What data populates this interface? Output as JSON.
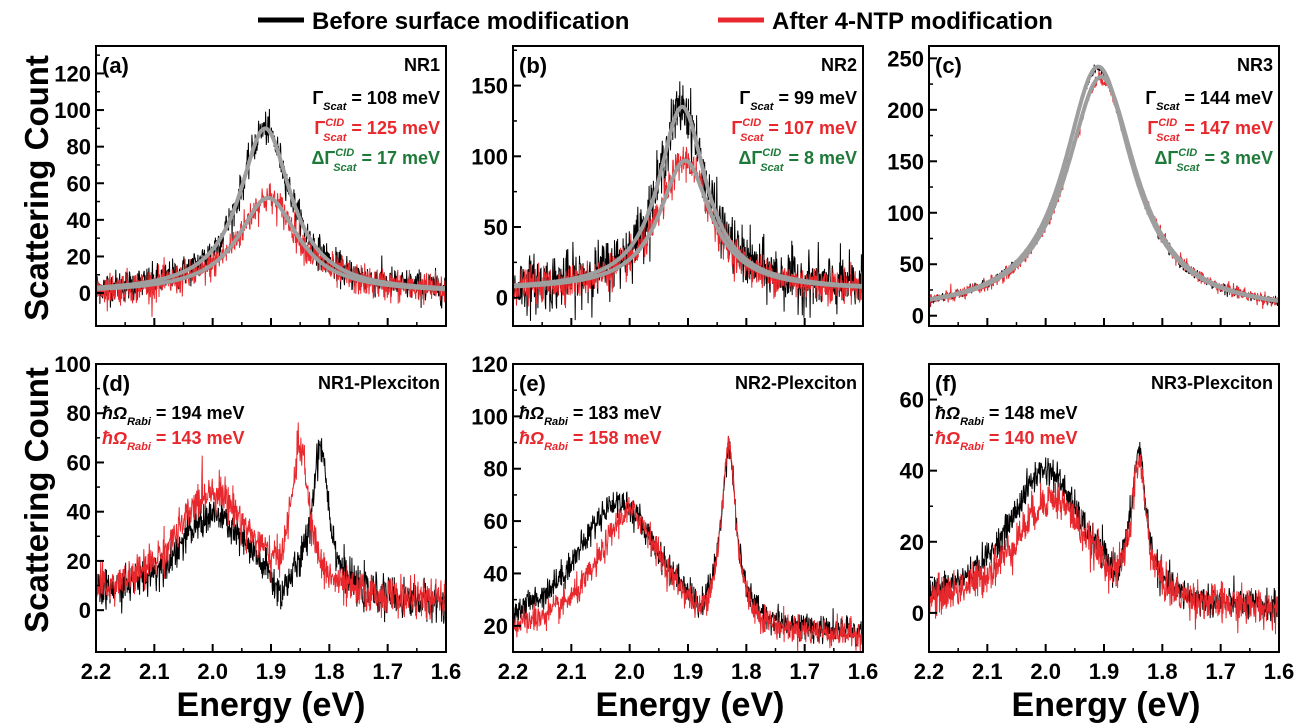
{
  "legend": [
    {
      "label": "Before surface modification",
      "color": "#000000"
    },
    {
      "label": "After 4-NTP modification",
      "color": "#e8282d"
    }
  ],
  "y_axis_title": "Scattering Count",
  "x_axis_title": "Energy (eV)",
  "colors": {
    "before": "#000000",
    "after": "#e8282d",
    "fit": "#9e9e9e",
    "delta": "#1f7a3a"
  },
  "chart_data": [
    {
      "type": "line",
      "panel": "(a)",
      "title": "NR1",
      "xlim": [
        2.2,
        1.6
      ],
      "ylim": [
        -18,
        135
      ],
      "xticks": [
        "2.2",
        "2.1",
        "2.0",
        "1.9",
        "1.8",
        "1.7",
        "1.6"
      ],
      "yticks": [
        0,
        20,
        40,
        60,
        80,
        100,
        120
      ],
      "series": [
        {
          "kind": "before",
          "peaks": [
            {
              "center": 1.91,
              "height": 90,
              "width": 0.108
            }
          ],
          "baseline": 0,
          "noise": 8
        },
        {
          "kind": "after",
          "peaks": [
            {
              "center": 1.905,
              "height": 52,
              "width": 0.125
            }
          ],
          "baseline": 0,
          "noise": 8
        }
      ],
      "fits": [
        {
          "center": 1.91,
          "height": 90,
          "width": 0.108
        },
        {
          "center": 1.905,
          "height": 52,
          "width": 0.125
        }
      ],
      "annotations": [
        {
          "symbol": "Γ",
          "sub": "Scat",
          "sup": "",
          "text": " = 108 meV",
          "color": "before"
        },
        {
          "symbol": "Γ",
          "sub": "Scat",
          "sup": "CID",
          "text": " = 125 meV",
          "color": "after"
        },
        {
          "symbol": "ΔΓ",
          "sub": "Scat",
          "sup": "CID",
          "text": " = 17 meV",
          "color": "delta"
        }
      ]
    },
    {
      "type": "line",
      "panel": "(b)",
      "title": "NR2",
      "xlim": [
        2.2,
        1.6
      ],
      "ylim": [
        -20,
        178
      ],
      "xticks": [
        "2.2",
        "2.1",
        "2.0",
        "1.9",
        "1.8",
        "1.7",
        "1.6"
      ],
      "yticks": [
        0,
        50,
        100,
        150
      ],
      "series": [
        {
          "kind": "before",
          "peaks": [
            {
              "center": 1.91,
              "height": 130,
              "width": 0.099
            }
          ],
          "baseline": 5,
          "noise": 18
        },
        {
          "kind": "after",
          "peaks": [
            {
              "center": 1.905,
              "height": 92,
              "width": 0.107
            }
          ],
          "baseline": 5,
          "noise": 11
        }
      ],
      "fits": [
        {
          "center": 1.91,
          "height": 130,
          "width": 0.099,
          "baseline": 5
        },
        {
          "center": 1.905,
          "height": 92,
          "width": 0.107,
          "baseline": 5
        }
      ],
      "annotations": [
        {
          "symbol": "Γ",
          "sub": "Scat",
          "sup": "",
          "text": " = 99 meV",
          "color": "before"
        },
        {
          "symbol": "Γ",
          "sub": "Scat",
          "sup": "CID",
          "text": " = 107 meV",
          "color": "after"
        },
        {
          "symbol": "ΔΓ",
          "sub": "Scat",
          "sup": "CID",
          "text": " = 8 meV",
          "color": "delta"
        }
      ]
    },
    {
      "type": "line",
      "panel": "(c)",
      "title": "NR3",
      "xlim": [
        2.2,
        1.6
      ],
      "ylim": [
        -10,
        262
      ],
      "xticks": [
        "2.2",
        "2.1",
        "2.0",
        "1.9",
        "1.8",
        "1.7",
        "1.6"
      ],
      "yticks": [
        0,
        50,
        100,
        150,
        200,
        250
      ],
      "series": [
        {
          "kind": "before",
          "peaks": [
            {
              "center": 1.91,
              "height": 238,
              "width": 0.144
            }
          ],
          "baseline": 2,
          "noise": 4
        },
        {
          "kind": "after",
          "peaks": [
            {
              "center": 1.905,
              "height": 228,
              "width": 0.147
            }
          ],
          "baseline": 2,
          "noise": 6
        }
      ],
      "fits": [
        {
          "center": 1.91,
          "height": 240,
          "width": 0.144,
          "baseline": 2
        },
        {
          "center": 1.905,
          "height": 230,
          "width": 0.147,
          "baseline": 2
        }
      ],
      "annotations": [
        {
          "symbol": "Γ",
          "sub": "Scat",
          "sup": "",
          "text": " = 144 meV",
          "color": "before"
        },
        {
          "symbol": "Γ",
          "sub": "Scat",
          "sup": "CID",
          "text": " = 147 meV",
          "color": "after"
        },
        {
          "symbol": "ΔΓ",
          "sub": "Scat",
          "sup": "CID",
          "text": " = 3 meV",
          "color": "delta"
        }
      ]
    },
    {
      "type": "line",
      "panel": "(d)",
      "title": "NR1-Plexciton",
      "xlim": [
        2.2,
        1.6
      ],
      "ylim": [
        -17,
        100
      ],
      "xticks": [
        "2.2",
        "2.1",
        "2.0",
        "1.9",
        "1.8",
        "1.7",
        "1.6"
      ],
      "yticks": [
        0,
        20,
        40,
        60,
        80,
        100
      ],
      "series": [
        {
          "kind": "before",
          "baseline": 2,
          "noise": 7,
          "dips": [
            {
              "center": 1.885,
              "depth": 10,
              "width": 0.03
            }
          ],
          "peaks": [
            {
              "center": 2.0,
              "height": 36,
              "width": 0.16
            },
            {
              "center": 1.815,
              "height": 60,
              "width": 0.035
            }
          ]
        },
        {
          "kind": "after",
          "baseline": 2,
          "noise": 7,
          "dips": [
            {
              "center": 1.89,
              "depth": 6,
              "width": 0.03
            }
          ],
          "peaks": [
            {
              "center": 2.0,
              "height": 46,
              "width": 0.16
            },
            {
              "center": 1.85,
              "height": 56,
              "width": 0.035
            }
          ]
        }
      ],
      "annotations": [
        {
          "symbol": "ħΩ",
          "sub": "Rabi",
          "sup": "",
          "text": " = 194 meV",
          "color": "before"
        },
        {
          "symbol": "ħΩ",
          "sub": "Rabi",
          "sup": "",
          "text": " = 143 meV",
          "color": "after"
        }
      ]
    },
    {
      "type": "line",
      "panel": "(e)",
      "title": "NR2-Plexciton",
      "xlim": [
        2.2,
        1.6
      ],
      "ylim": [
        10,
        120
      ],
      "xticks": [
        "2.2",
        "2.1",
        "2.0",
        "1.9",
        "1.8",
        "1.7",
        "1.6"
      ],
      "yticks": [
        20,
        40,
        60,
        80,
        100,
        120
      ],
      "series": [
        {
          "kind": "before",
          "baseline": 15,
          "noise": 5,
          "dips": [
            {
              "center": 1.88,
              "depth": 8,
              "width": 0.03
            }
          ],
          "peaks": [
            {
              "center": 2.02,
              "height": 52,
              "width": 0.18
            },
            {
              "center": 1.83,
              "height": 65,
              "width": 0.03
            }
          ]
        },
        {
          "kind": "after",
          "baseline": 15,
          "noise": 5,
          "dips": [
            {
              "center": 1.88,
              "depth": 6,
              "width": 0.03
            }
          ],
          "peaks": [
            {
              "center": 2.0,
              "height": 48,
              "width": 0.14
            },
            {
              "center": 1.83,
              "height": 68,
              "width": 0.03
            }
          ]
        }
      ],
      "annotations": [
        {
          "symbol": "ħΩ",
          "sub": "Rabi",
          "sup": "",
          "text": " = 183 meV",
          "color": "before"
        },
        {
          "symbol": "ħΩ",
          "sub": "Rabi",
          "sup": "",
          "text": " = 158 meV",
          "color": "after"
        }
      ]
    },
    {
      "type": "line",
      "panel": "(f)",
      "title": "NR3-Plexciton",
      "xlim": [
        2.2,
        1.6
      ],
      "ylim": [
        -11,
        70
      ],
      "xticks": [
        "2.2",
        "2.1",
        "2.0",
        "1.9",
        "1.8",
        "1.7",
        "1.6"
      ],
      "yticks": [
        0,
        20,
        40,
        60
      ],
      "series": [
        {
          "kind": "before",
          "baseline": 0,
          "noise": 4,
          "dips": [
            {
              "center": 1.88,
              "depth": 5,
              "width": 0.025
            }
          ],
          "peaks": [
            {
              "center": 2.0,
              "height": 40,
              "width": 0.16
            },
            {
              "center": 1.84,
              "height": 38,
              "width": 0.03
            }
          ]
        },
        {
          "kind": "after",
          "baseline": 0,
          "noise": 5,
          "dips": [
            {
              "center": 1.88,
              "depth": 4,
              "width": 0.025
            }
          ],
          "peaks": [
            {
              "center": 1.99,
              "height": 32,
              "width": 0.16
            },
            {
              "center": 1.84,
              "height": 36,
              "width": 0.03
            }
          ]
        }
      ],
      "annotations": [
        {
          "symbol": "ħΩ",
          "sub": "Rabi",
          "sup": "",
          "text": " = 148 meV",
          "color": "before"
        },
        {
          "symbol": "ħΩ",
          "sub": "Rabi",
          "sup": "",
          "text": " = 140 meV",
          "color": "after"
        }
      ]
    }
  ]
}
